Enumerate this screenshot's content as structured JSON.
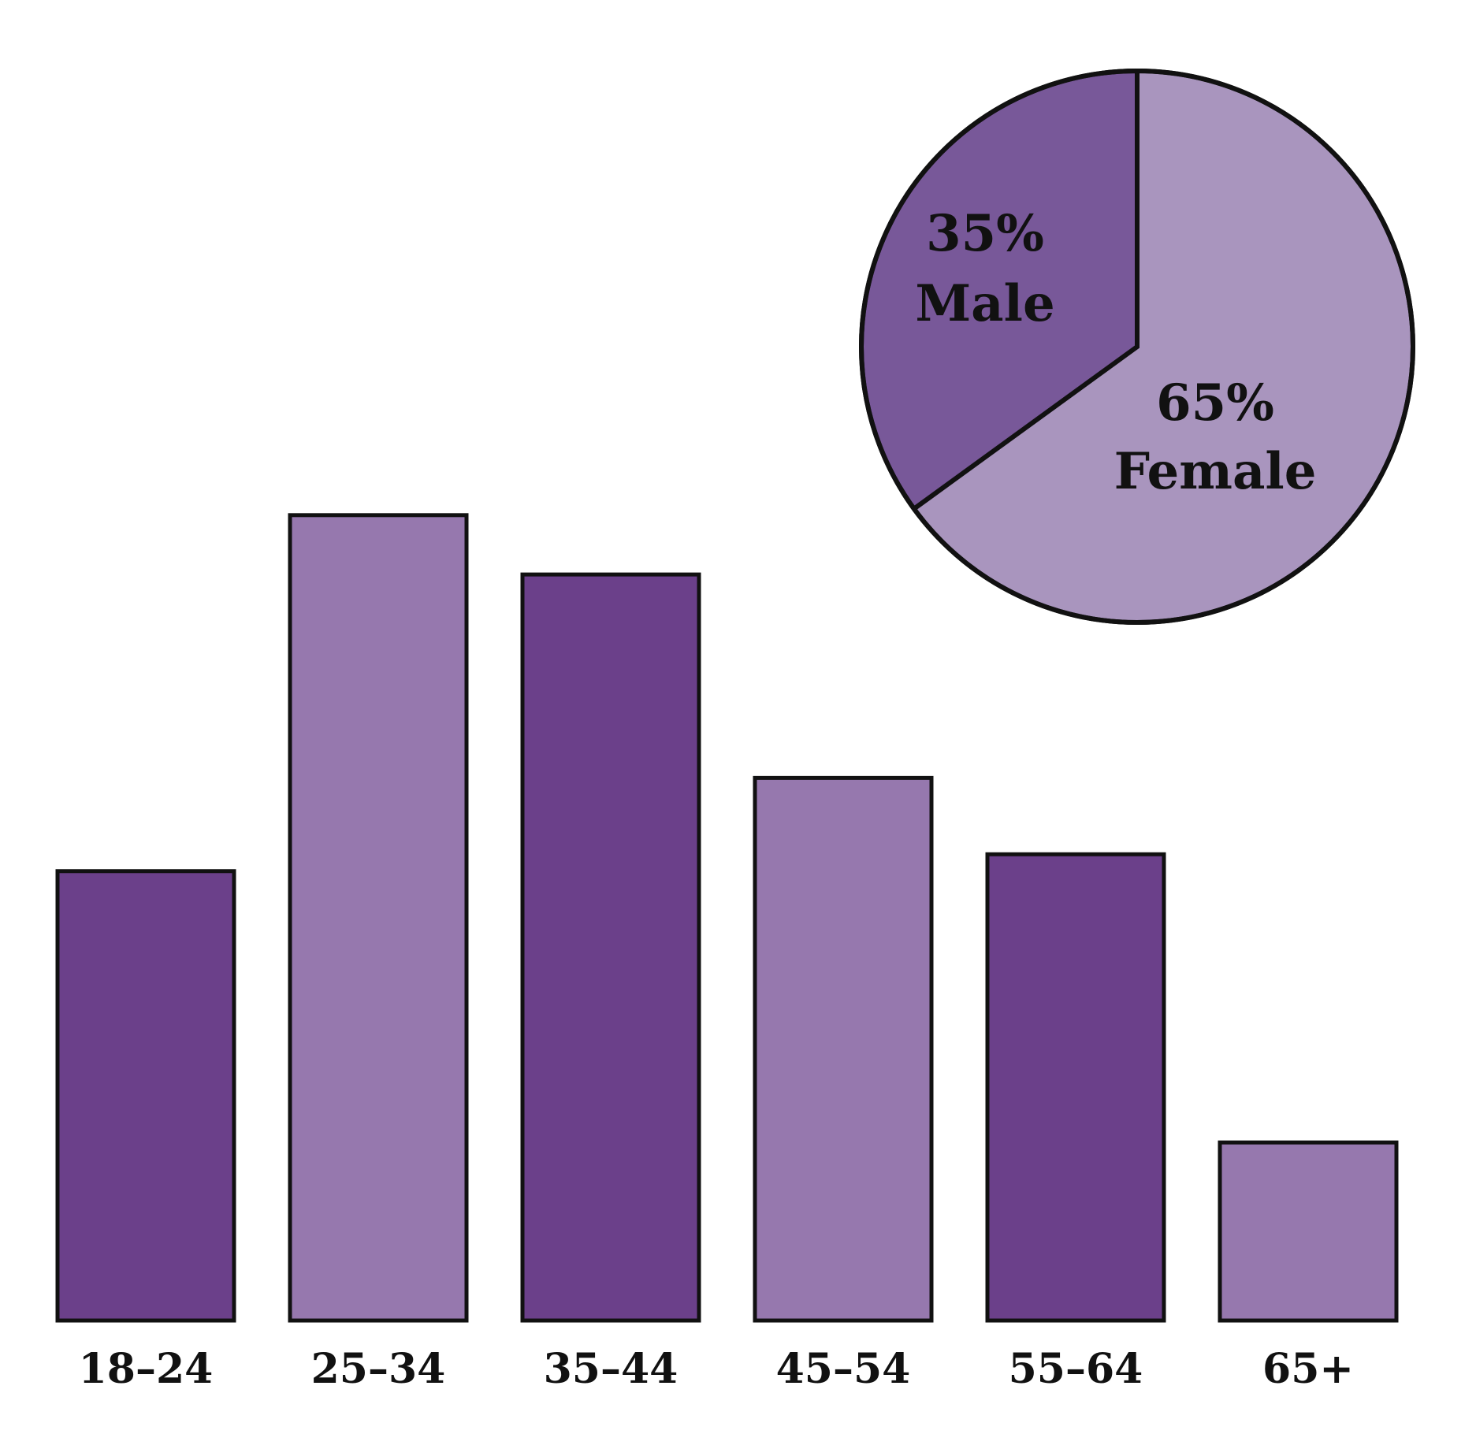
{
  "chart_data": [
    {
      "type": "bar",
      "categories": [
        "18–24",
        "25–34",
        "35–44",
        "45–54",
        "55–64",
        "65+"
      ],
      "values": [
        53,
        95,
        88,
        64,
        55,
        21
      ],
      "ylim": [
        0,
        100
      ],
      "grid": false,
      "colors": [
        "#6b408a",
        "#9678ae",
        "#6b408a",
        "#9678ae",
        "#6b408a",
        "#9678ae"
      ]
    },
    {
      "type": "pie",
      "slices": [
        {
          "percent_label": "35%",
          "name": "Male",
          "value": 35,
          "color": "#785899"
        },
        {
          "percent_label": "65%",
          "name": "Female",
          "value": 65,
          "color": "#a995be"
        }
      ]
    }
  ]
}
